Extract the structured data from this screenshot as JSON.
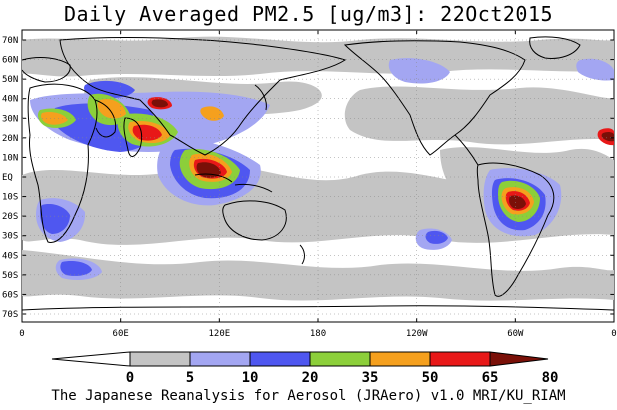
{
  "title": "Daily Averaged PM2.5 [ug/m3]: 22Oct2015",
  "footer": "The Japanese Reanalysis for Aerosol (JRAero) v1.0 MRI/KU_RIAM",
  "lat_ticks": [
    "70N",
    "60N",
    "50N",
    "40N",
    "30N",
    "20N",
    "10N",
    "EQ",
    "10S",
    "20S",
    "30S",
    "40S",
    "50S",
    "60S",
    "70S"
  ],
  "lon_ticks": [
    "0",
    "60E",
    "120E",
    "180",
    "120W",
    "60W",
    "0"
  ],
  "colorbar": {
    "levels": [
      "0",
      "5",
      "10",
      "20",
      "35",
      "50",
      "65",
      "80"
    ],
    "colors": [
      "#ffffff",
      "#c4c4c4",
      "#a3a6f2",
      "#4f57f0",
      "#8ccf3a",
      "#f5a01e",
      "#e81818",
      "#7a1008"
    ]
  },
  "map_colors": {
    "land_outline": "#000000",
    "background": "#ffffff"
  }
}
